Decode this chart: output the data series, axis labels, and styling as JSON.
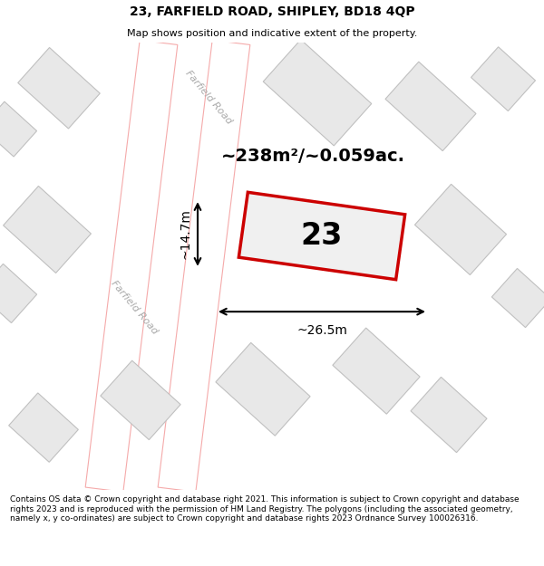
{
  "title": "23, FARFIELD ROAD, SHIPLEY, BD18 4QP",
  "subtitle": "Map shows position and indicative extent of the property.",
  "footer": "Contains OS data © Crown copyright and database right 2021. This information is subject to Crown copyright and database rights 2023 and is reproduced with the permission of HM Land Registry. The polygons (including the associated geometry, namely x, y co-ordinates) are subject to Crown copyright and database rights 2023 Ordnance Survey 100026316.",
  "area_text": "~238m²/~0.059ac.",
  "number_label": "23",
  "dim_width": "~26.5m",
  "dim_height": "~14.7m",
  "road_label_upper": "Farfield Road",
  "road_label_lower": "Farfield Road",
  "building_fill": "#e8e8e8",
  "building_edge": "#c0c0c0",
  "road_fill": "#ffffff",
  "road_outline": "#f5aaaa",
  "prop_fill": "#f0f0f0",
  "prop_edge": "#cc0000",
  "title_fontsize": 10,
  "subtitle_fontsize": 8,
  "footer_fontsize": 6.5,
  "area_fontsize": 14,
  "number_fontsize": 24,
  "dim_fontsize": 10,
  "road_label_fontsize": 8
}
